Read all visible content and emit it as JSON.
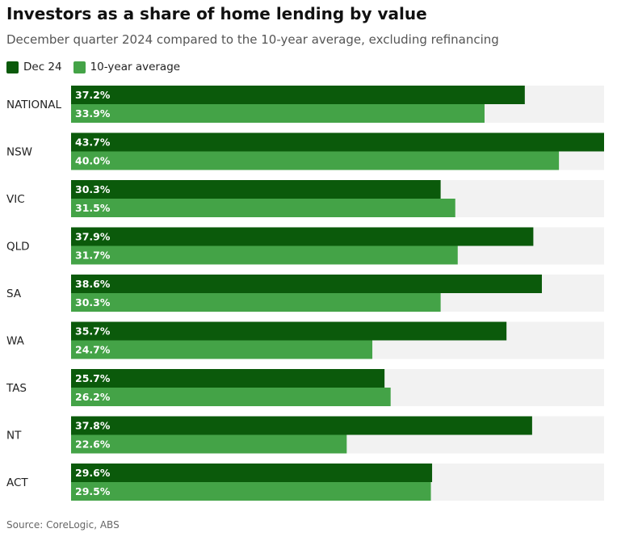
{
  "chart_data": {
    "type": "bar",
    "orientation": "horizontal",
    "title": "Investors as a share of home lending by value",
    "subtitle": "December quarter 2024 compared to the 10-year average, excluding refinancing",
    "categories": [
      "NATIONAL",
      "NSW",
      "VIC",
      "QLD",
      "SA",
      "WA",
      "TAS",
      "NT",
      "ACT"
    ],
    "series": [
      {
        "name": "Dec 24",
        "color": "#0b5a0b",
        "values": [
          37.2,
          43.7,
          30.3,
          37.9,
          38.6,
          35.7,
          25.7,
          37.8,
          29.6
        ],
        "labels": [
          "37.2%",
          "43.7%",
          "30.3%",
          "37.9%",
          "38.6%",
          "35.7%",
          "25.7%",
          "37.8%",
          "29.6%"
        ]
      },
      {
        "name": "10-year average",
        "color": "#44a347",
        "values": [
          33.9,
          40.0,
          31.5,
          31.7,
          30.3,
          24.7,
          26.2,
          22.6,
          29.5
        ],
        "labels": [
          "33.9%",
          "40.0%",
          "31.5%",
          "31.7%",
          "30.3%",
          "24.7%",
          "26.2%",
          "22.6%",
          "29.5%"
        ]
      }
    ],
    "xlim": [
      0,
      43.7
    ],
    "background_track_color": "#f2f2f2",
    "legend_position": "top-left",
    "source": "Source: CoreLogic, ABS"
  }
}
